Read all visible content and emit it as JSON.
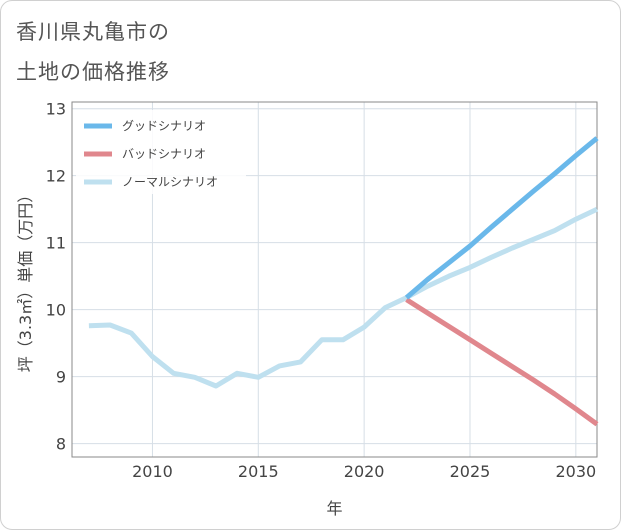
{
  "chart_title": {
    "line1": "香川県丸亀市の",
    "line2": "土地の価格推移"
  },
  "chart_data": {
    "type": "line",
    "title": "香川県丸亀市の土地の価格推移",
    "xlabel": "年",
    "ylabel": "坪（3.3㎡）単価（万円）",
    "xlim": [
      2006.2,
      2031
    ],
    "ylim": [
      7.8,
      13.1
    ],
    "x_ticks": [
      2010,
      2015,
      2020,
      2025,
      2030
    ],
    "y_ticks": [
      8,
      9,
      10,
      11,
      12,
      13
    ],
    "legend_position": "top-left",
    "series": [
      {
        "name": "グッドシナリオ",
        "color": "#6ab8ea",
        "x": [
          2022,
          2023,
          2024,
          2025,
          2026,
          2027,
          2028,
          2029,
          2030,
          2031
        ],
        "values": [
          10.18,
          10.45,
          10.7,
          10.95,
          11.23,
          11.5,
          11.77,
          12.03,
          12.3,
          12.56
        ]
      },
      {
        "name": "バッドシナリオ",
        "color": "#e0878d",
        "x": [
          2022,
          2023,
          2024,
          2025,
          2026,
          2027,
          2028,
          2029,
          2030,
          2031
        ],
        "values": [
          10.15,
          9.95,
          9.75,
          9.55,
          9.35,
          9.15,
          8.95,
          8.74,
          8.52,
          8.29
        ]
      },
      {
        "name": "ノーマルシナリオ",
        "color": "#bfe0ef",
        "x": [
          2007,
          2008,
          2009,
          2010,
          2011,
          2012,
          2013,
          2014,
          2015,
          2016,
          2017,
          2018,
          2019,
          2020,
          2021,
          2022,
          2023,
          2024,
          2025,
          2026,
          2027,
          2028,
          2029,
          2030,
          2031
        ],
        "values": [
          9.76,
          9.77,
          9.65,
          9.3,
          9.05,
          8.99,
          8.86,
          9.05,
          8.99,
          9.16,
          9.22,
          9.55,
          9.55,
          9.74,
          10.03,
          10.18,
          10.35,
          10.5,
          10.63,
          10.78,
          10.92,
          11.05,
          11.18,
          11.35,
          11.5
        ]
      }
    ]
  }
}
